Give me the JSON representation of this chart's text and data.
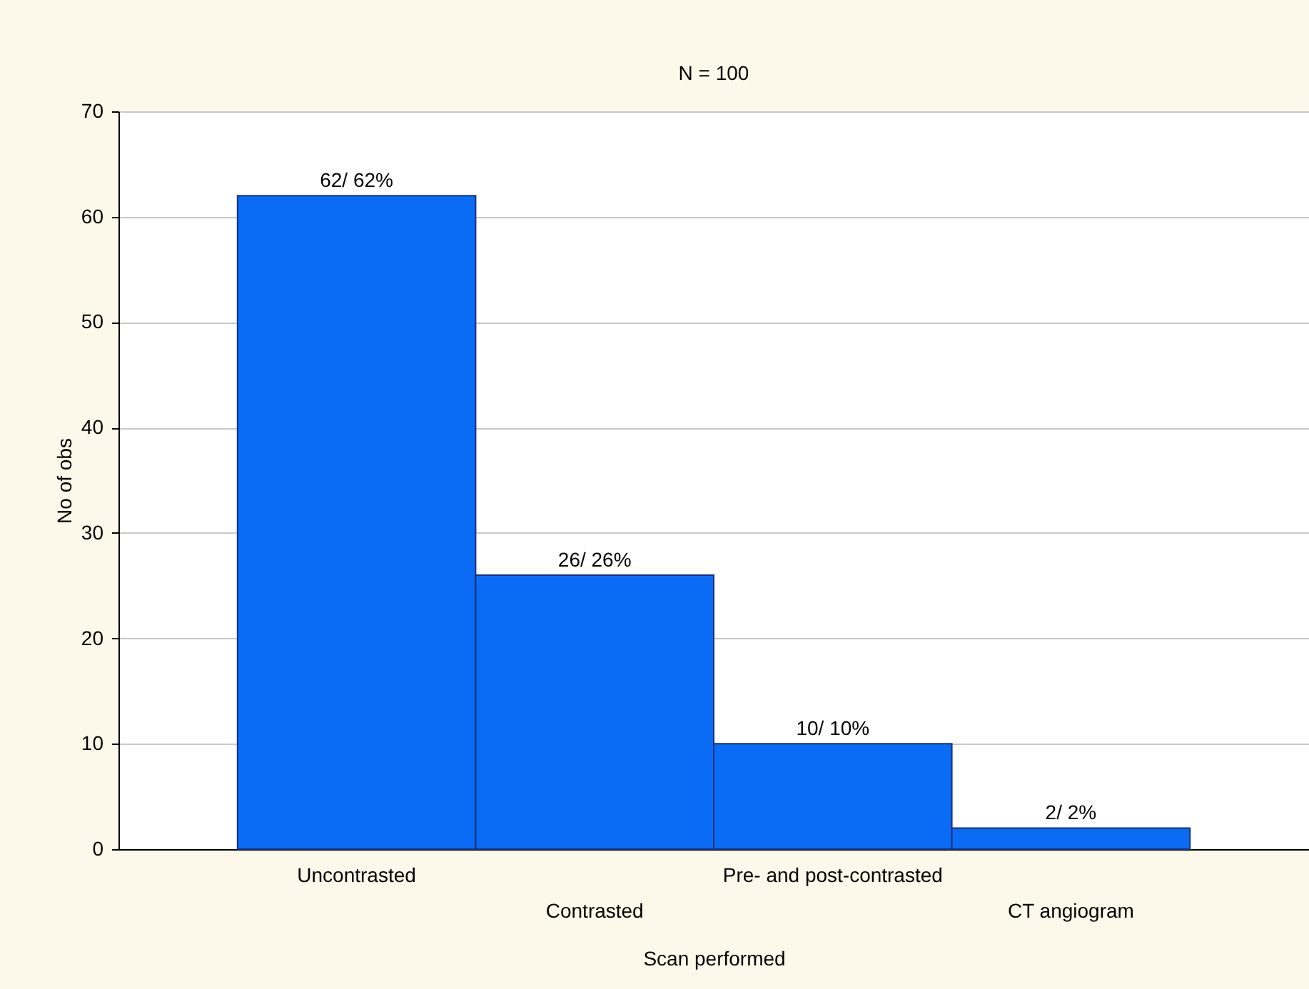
{
  "chart_data": {
    "type": "bar",
    "title": "N = 100",
    "xlabel": "Scan performed",
    "ylabel": "No of obs",
    "categories": [
      "Uncontrasted",
      "Contrasted",
      "Pre- and post-contrasted",
      "CT angiogram"
    ],
    "values": [
      62,
      26,
      10,
      2
    ],
    "value_labels": [
      "62/ 62%",
      "26/ 26%",
      "10/ 10%",
      "2/ 2%"
    ],
    "color": "#0a6cf5",
    "ylim": [
      0,
      70
    ],
    "yticks": [
      0,
      10,
      20,
      30,
      40,
      50,
      60,
      70
    ],
    "grid": "y"
  }
}
